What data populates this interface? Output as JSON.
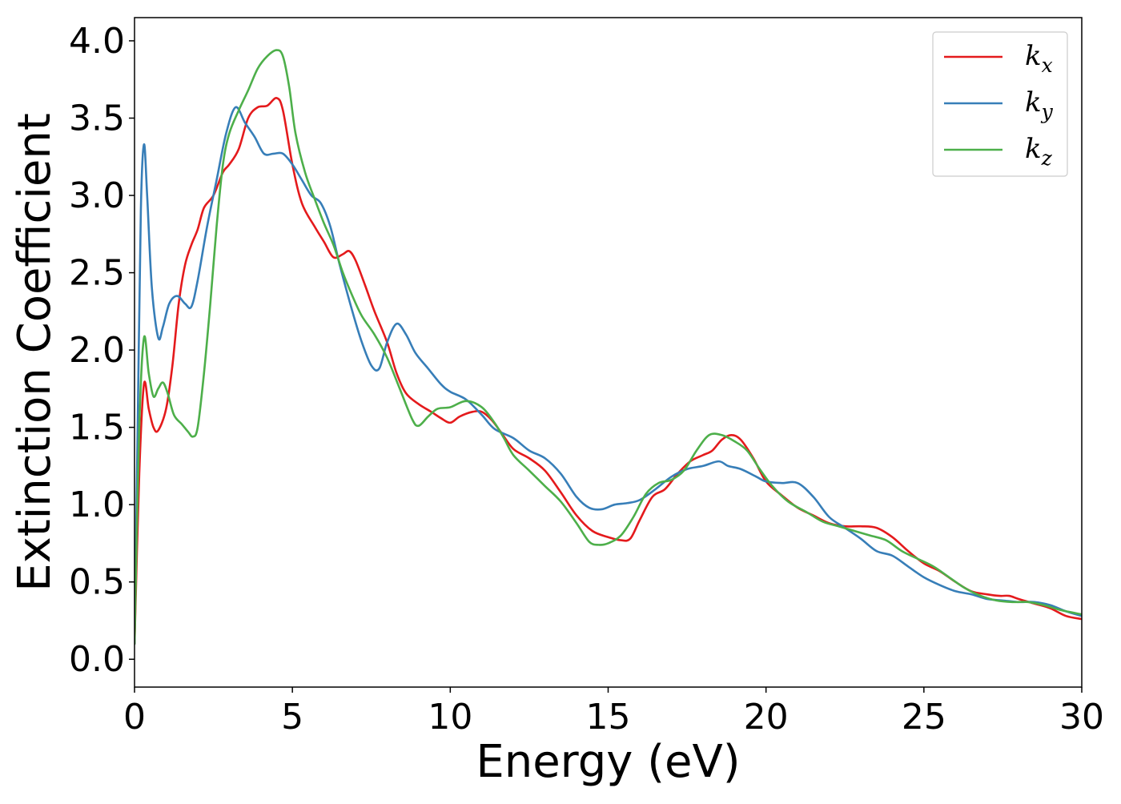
{
  "chart_data": {
    "type": "line",
    "title": "",
    "xlabel": "Energy (eV)",
    "ylabel": "Extinction Coefficient",
    "xlim": [
      0,
      30
    ],
    "ylim": [
      -0.18,
      4.15
    ],
    "xticks": [
      0,
      5,
      10,
      15,
      20,
      25,
      30
    ],
    "xtick_labels": [
      "0",
      "5",
      "10",
      "15",
      "20",
      "25",
      "30"
    ],
    "yticks": [
      0.0,
      0.5,
      1.0,
      1.5,
      2.0,
      2.5,
      3.0,
      3.5,
      4.0
    ],
    "ytick_labels": [
      "0.0",
      "0.5",
      "1.0",
      "1.5",
      "2.0",
      "2.5",
      "3.0",
      "3.5",
      "4.0"
    ],
    "grid": false,
    "legend_position": "top-right",
    "series": [
      {
        "name": "k",
        "subscript": "x",
        "color": "#e41a1c",
        "points": [
          [
            0,
            0.1
          ],
          [
            0.15,
            1.2
          ],
          [
            0.3,
            1.78
          ],
          [
            0.45,
            1.62
          ],
          [
            0.6,
            1.5
          ],
          [
            0.75,
            1.48
          ],
          [
            1.0,
            1.62
          ],
          [
            1.2,
            1.9
          ],
          [
            1.4,
            2.3
          ],
          [
            1.6,
            2.55
          ],
          [
            1.8,
            2.68
          ],
          [
            2.0,
            2.78
          ],
          [
            2.2,
            2.92
          ],
          [
            2.5,
            3.0
          ],
          [
            2.8,
            3.15
          ],
          [
            3.0,
            3.2
          ],
          [
            3.3,
            3.3
          ],
          [
            3.6,
            3.5
          ],
          [
            3.9,
            3.57
          ],
          [
            4.2,
            3.58
          ],
          [
            4.5,
            3.63
          ],
          [
            4.7,
            3.55
          ],
          [
            5.0,
            3.2
          ],
          [
            5.3,
            2.95
          ],
          [
            5.7,
            2.8
          ],
          [
            6.0,
            2.7
          ],
          [
            6.3,
            2.6
          ],
          [
            6.6,
            2.62
          ],
          [
            6.8,
            2.64
          ],
          [
            7.0,
            2.58
          ],
          [
            7.3,
            2.42
          ],
          [
            7.6,
            2.25
          ],
          [
            8.0,
            2.05
          ],
          [
            8.3,
            1.85
          ],
          [
            8.6,
            1.72
          ],
          [
            9.0,
            1.65
          ],
          [
            9.4,
            1.6
          ],
          [
            9.7,
            1.56
          ],
          [
            10.0,
            1.53
          ],
          [
            10.3,
            1.57
          ],
          [
            10.7,
            1.6
          ],
          [
            11.0,
            1.6
          ],
          [
            11.3,
            1.55
          ],
          [
            11.6,
            1.47
          ],
          [
            12.0,
            1.36
          ],
          [
            12.5,
            1.3
          ],
          [
            13.0,
            1.22
          ],
          [
            13.5,
            1.08
          ],
          [
            14.0,
            0.93
          ],
          [
            14.5,
            0.83
          ],
          [
            15.0,
            0.79
          ],
          [
            15.4,
            0.77
          ],
          [
            15.7,
            0.78
          ],
          [
            16.0,
            0.9
          ],
          [
            16.4,
            1.05
          ],
          [
            16.8,
            1.1
          ],
          [
            17.2,
            1.2
          ],
          [
            17.6,
            1.28
          ],
          [
            18.0,
            1.32
          ],
          [
            18.3,
            1.35
          ],
          [
            18.6,
            1.42
          ],
          [
            18.9,
            1.45
          ],
          [
            19.2,
            1.42
          ],
          [
            19.6,
            1.3
          ],
          [
            20.0,
            1.15
          ],
          [
            20.5,
            1.06
          ],
          [
            21.0,
            0.98
          ],
          [
            21.5,
            0.93
          ],
          [
            22.0,
            0.88
          ],
          [
            22.5,
            0.86
          ],
          [
            23.0,
            0.86
          ],
          [
            23.5,
            0.85
          ],
          [
            24.0,
            0.79
          ],
          [
            24.5,
            0.7
          ],
          [
            25.0,
            0.62
          ],
          [
            25.5,
            0.57
          ],
          [
            26.0,
            0.5
          ],
          [
            26.5,
            0.44
          ],
          [
            27.0,
            0.42
          ],
          [
            27.4,
            0.41
          ],
          [
            27.7,
            0.41
          ],
          [
            28.0,
            0.39
          ],
          [
            28.5,
            0.36
          ],
          [
            29.0,
            0.33
          ],
          [
            29.5,
            0.28
          ],
          [
            30.0,
            0.26
          ]
        ]
      },
      {
        "name": "k",
        "subscript": "y",
        "color": "#377eb8",
        "points": [
          [
            0,
            0.1
          ],
          [
            0.1,
            1.5
          ],
          [
            0.2,
            2.9
          ],
          [
            0.3,
            3.33
          ],
          [
            0.4,
            3.0
          ],
          [
            0.55,
            2.4
          ],
          [
            0.75,
            2.08
          ],
          [
            0.9,
            2.15
          ],
          [
            1.1,
            2.3
          ],
          [
            1.35,
            2.35
          ],
          [
            1.6,
            2.3
          ],
          [
            1.8,
            2.28
          ],
          [
            2.0,
            2.45
          ],
          [
            2.3,
            2.8
          ],
          [
            2.6,
            3.1
          ],
          [
            2.9,
            3.4
          ],
          [
            3.2,
            3.57
          ],
          [
            3.5,
            3.47
          ],
          [
            3.8,
            3.38
          ],
          [
            4.1,
            3.27
          ],
          [
            4.4,
            3.27
          ],
          [
            4.7,
            3.27
          ],
          [
            5.0,
            3.2
          ],
          [
            5.3,
            3.1
          ],
          [
            5.6,
            3.0
          ],
          [
            5.9,
            2.95
          ],
          [
            6.2,
            2.8
          ],
          [
            6.5,
            2.55
          ],
          [
            6.9,
            2.25
          ],
          [
            7.2,
            2.05
          ],
          [
            7.5,
            1.9
          ],
          [
            7.75,
            1.88
          ],
          [
            8.0,
            2.05
          ],
          [
            8.3,
            2.17
          ],
          [
            8.6,
            2.1
          ],
          [
            8.9,
            1.98
          ],
          [
            9.3,
            1.88
          ],
          [
            9.7,
            1.78
          ],
          [
            10.0,
            1.73
          ],
          [
            10.5,
            1.68
          ],
          [
            11.0,
            1.58
          ],
          [
            11.4,
            1.49
          ],
          [
            12.0,
            1.43
          ],
          [
            12.5,
            1.35
          ],
          [
            13.0,
            1.3
          ],
          [
            13.5,
            1.2
          ],
          [
            14.0,
            1.05
          ],
          [
            14.4,
            0.98
          ],
          [
            14.8,
            0.97
          ],
          [
            15.2,
            1.0
          ],
          [
            15.6,
            1.01
          ],
          [
            16.0,
            1.03
          ],
          [
            16.5,
            1.1
          ],
          [
            17.0,
            1.18
          ],
          [
            17.5,
            1.23
          ],
          [
            18.0,
            1.25
          ],
          [
            18.5,
            1.28
          ],
          [
            18.8,
            1.25
          ],
          [
            19.2,
            1.23
          ],
          [
            19.7,
            1.18
          ],
          [
            20.0,
            1.15
          ],
          [
            20.5,
            1.14
          ],
          [
            21.0,
            1.14
          ],
          [
            21.5,
            1.05
          ],
          [
            22.0,
            0.92
          ],
          [
            22.5,
            0.85
          ],
          [
            23.0,
            0.78
          ],
          [
            23.5,
            0.7
          ],
          [
            24.0,
            0.67
          ],
          [
            24.5,
            0.6
          ],
          [
            25.0,
            0.53
          ],
          [
            25.5,
            0.48
          ],
          [
            26.0,
            0.44
          ],
          [
            26.5,
            0.42
          ],
          [
            27.0,
            0.39
          ],
          [
            27.5,
            0.38
          ],
          [
            28.0,
            0.37
          ],
          [
            28.5,
            0.37
          ],
          [
            29.0,
            0.35
          ],
          [
            29.5,
            0.31
          ],
          [
            30.0,
            0.28
          ]
        ]
      },
      {
        "name": "k",
        "subscript": "z",
        "color": "#4daf4a",
        "points": [
          [
            0,
            0.1
          ],
          [
            0.15,
            1.5
          ],
          [
            0.3,
            2.08
          ],
          [
            0.45,
            1.85
          ],
          [
            0.6,
            1.7
          ],
          [
            0.75,
            1.75
          ],
          [
            0.9,
            1.79
          ],
          [
            1.05,
            1.72
          ],
          [
            1.25,
            1.58
          ],
          [
            1.5,
            1.52
          ],
          [
            1.7,
            1.47
          ],
          [
            1.85,
            1.44
          ],
          [
            2.0,
            1.5
          ],
          [
            2.2,
            1.85
          ],
          [
            2.4,
            2.3
          ],
          [
            2.6,
            2.8
          ],
          [
            2.8,
            3.2
          ],
          [
            3.0,
            3.4
          ],
          [
            3.3,
            3.55
          ],
          [
            3.6,
            3.68
          ],
          [
            3.9,
            3.82
          ],
          [
            4.2,
            3.9
          ],
          [
            4.5,
            3.94
          ],
          [
            4.7,
            3.9
          ],
          [
            4.9,
            3.7
          ],
          [
            5.1,
            3.4
          ],
          [
            5.4,
            3.15
          ],
          [
            5.7,
            2.98
          ],
          [
            6.0,
            2.82
          ],
          [
            6.3,
            2.68
          ],
          [
            6.6,
            2.5
          ],
          [
            6.9,
            2.35
          ],
          [
            7.2,
            2.22
          ],
          [
            7.6,
            2.1
          ],
          [
            8.0,
            1.95
          ],
          [
            8.4,
            1.75
          ],
          [
            8.8,
            1.55
          ],
          [
            9.0,
            1.51
          ],
          [
            9.3,
            1.57
          ],
          [
            9.6,
            1.62
          ],
          [
            10.0,
            1.63
          ],
          [
            10.5,
            1.67
          ],
          [
            11.0,
            1.63
          ],
          [
            11.4,
            1.53
          ],
          [
            11.7,
            1.43
          ],
          [
            12.0,
            1.32
          ],
          [
            12.5,
            1.22
          ],
          [
            13.0,
            1.12
          ],
          [
            13.5,
            1.02
          ],
          [
            14.0,
            0.88
          ],
          [
            14.4,
            0.76
          ],
          [
            14.7,
            0.74
          ],
          [
            15.0,
            0.75
          ],
          [
            15.4,
            0.8
          ],
          [
            15.8,
            0.92
          ],
          [
            16.2,
            1.07
          ],
          [
            16.6,
            1.14
          ],
          [
            17.0,
            1.16
          ],
          [
            17.4,
            1.22
          ],
          [
            17.8,
            1.35
          ],
          [
            18.2,
            1.45
          ],
          [
            18.6,
            1.45
          ],
          [
            19.0,
            1.41
          ],
          [
            19.4,
            1.35
          ],
          [
            19.8,
            1.23
          ],
          [
            20.2,
            1.12
          ],
          [
            20.7,
            1.02
          ],
          [
            21.3,
            0.95
          ],
          [
            21.8,
            0.89
          ],
          [
            22.3,
            0.86
          ],
          [
            22.8,
            0.83
          ],
          [
            23.3,
            0.8
          ],
          [
            23.8,
            0.77
          ],
          [
            24.3,
            0.7
          ],
          [
            24.8,
            0.65
          ],
          [
            25.3,
            0.6
          ],
          [
            25.8,
            0.53
          ],
          [
            26.3,
            0.46
          ],
          [
            26.8,
            0.41
          ],
          [
            27.3,
            0.38
          ],
          [
            27.8,
            0.37
          ],
          [
            28.3,
            0.37
          ],
          [
            28.8,
            0.35
          ],
          [
            29.3,
            0.32
          ],
          [
            30.0,
            0.29
          ]
        ]
      }
    ]
  }
}
